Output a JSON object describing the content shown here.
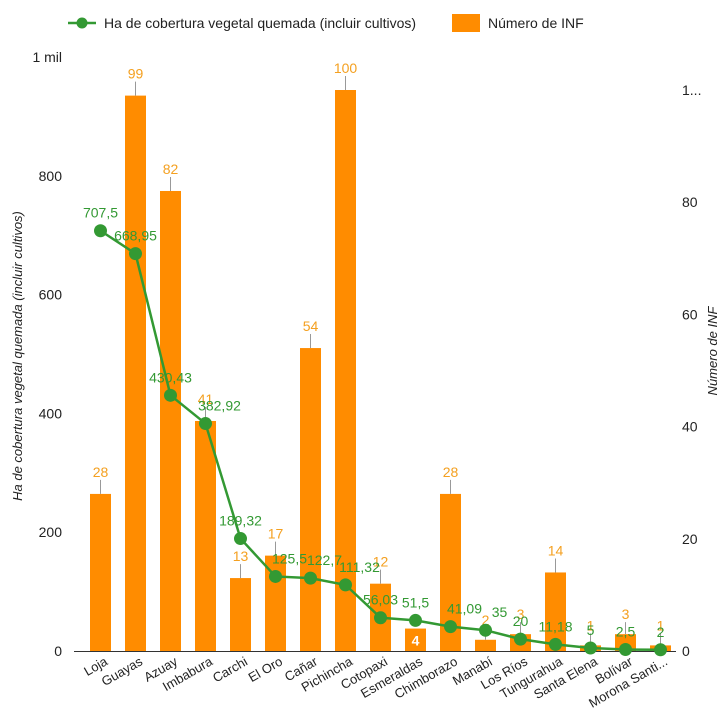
{
  "chart_data": {
    "type": "bar",
    "categories": [
      "Loja",
      "Guayas",
      "Azuay",
      "Imbabura",
      "Carchi",
      "El Oro",
      "Cañar",
      "Pichincha",
      "Cotopaxi",
      "Esmeraldas",
      "Chimborazo",
      "Manabí",
      "Los Ríos",
      "Tungurahua",
      "Santa Elena",
      "Bolívar",
      "Morona Santi..."
    ],
    "series": [
      {
        "name": "Ha de cobertura vegetal quemada (incluir cultivos)",
        "type": "line",
        "axis": "left",
        "values": [
          707.5,
          668.95,
          430.43,
          382.92,
          189.32,
          125.5,
          122.7,
          111.32,
          56.03,
          51.5,
          41.09,
          35,
          20,
          11.18,
          5,
          2.5,
          2
        ],
        "labels": [
          "707,5",
          "668,95",
          "430,43",
          "382,92",
          "189,32",
          "125,5",
          "122,7",
          "111,32",
          "56,03",
          "51,5",
          "41,09",
          "35",
          "20",
          "11,18",
          "5",
          "2,5",
          "2"
        ]
      },
      {
        "name": "Número de INF",
        "type": "bar",
        "axis": "right",
        "values": [
          28,
          99,
          82,
          41,
          13,
          17,
          54,
          100,
          12,
          4,
          28,
          2,
          3,
          14,
          1,
          3,
          1
        ],
        "labels": [
          "28",
          "99",
          "82",
          "41",
          "13",
          "17",
          "54",
          "100",
          "12",
          "4",
          "28",
          "2",
          "3",
          "14",
          "1",
          "3",
          "1"
        ]
      }
    ],
    "y_left": {
      "label": "Ha de cobertura vegetal quemada (incluir cultivos)",
      "range": [
        0,
        1000
      ],
      "ticks": [
        "0",
        "200",
        "400",
        "600",
        "800",
        "1 mil"
      ],
      "tick_values": [
        0,
        200,
        400,
        600,
        800,
        1000
      ]
    },
    "y_right": {
      "label": "Número de INF",
      "range": [
        0,
        106.25
      ],
      "ticks": [
        "0",
        "20",
        "40",
        "60",
        "80",
        "1..."
      ],
      "tick_values": [
        0,
        20,
        40,
        60,
        80,
        100
      ]
    },
    "legend_position": "top-left",
    "grid": false,
    "colors": {
      "bar": "#ff8c00",
      "line": "#339933",
      "bar_label": "#f4a020",
      "line_label": "#339933",
      "axis_text": "#222222",
      "bar_label_inside": "#ffffff"
    }
  }
}
